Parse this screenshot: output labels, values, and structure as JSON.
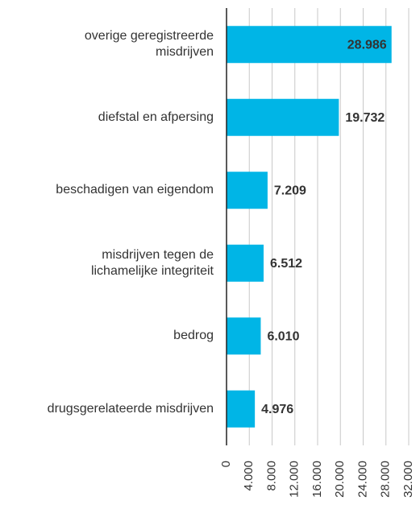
{
  "chart_data": {
    "type": "barh",
    "categories": [
      "overige geregistreerde\nmisdrijven",
      "diefstal en afpersing",
      "beschadigen van eigendom",
      "misdrijven tegen de\nlichamelijke integriteit",
      "bedrog",
      "drugsgerelateerde misdrijven"
    ],
    "values": [
      28986,
      19732,
      7209,
      6512,
      6010,
      4976
    ],
    "value_labels": [
      "28.986",
      "19.732",
      "7.209",
      "6.512",
      "6.010",
      "4.976"
    ],
    "color": "#00b5e6",
    "xlim": [
      0,
      32000
    ],
    "xticks": [
      0,
      {
        "value": 4000,
        "label": "4.000"
      },
      {
        "value": 8000,
        "label": "8.000"
      },
      {
        "value": 12000,
        "label": "12.000"
      },
      {
        "value": 16000,
        "label": "16.000"
      },
      {
        "value": 20000,
        "label": "20.000"
      },
      {
        "value": 24000,
        "label": "24.000"
      },
      {
        "value": 28000,
        "label": "28.000"
      },
      {
        "value": 32000,
        "label": "32.000"
      }
    ],
    "grid": true
  }
}
